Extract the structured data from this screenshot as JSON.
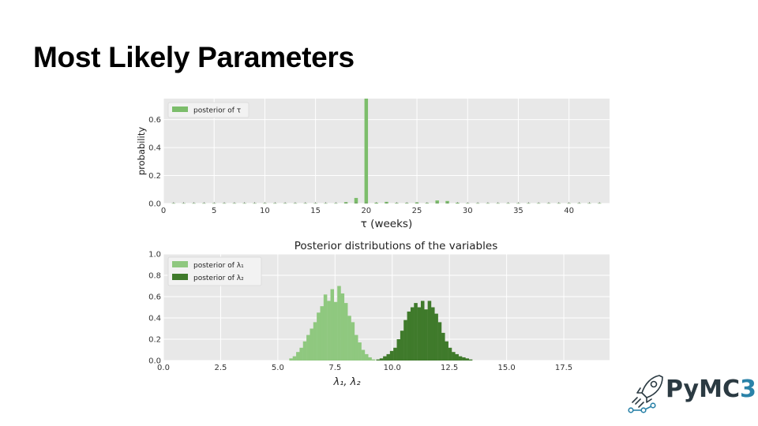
{
  "slide": {
    "title": "Most Likely Parameters"
  },
  "logo": {
    "text_main": "PyMC",
    "text_suffix": "3"
  },
  "colors": {
    "tau": "#7cbd6b",
    "lambda1": "#8fc87f",
    "lambda2": "#3f7a2b",
    "plot_bg": "#e8e8e8",
    "grid": "#ffffff"
  },
  "chart_data": [
    {
      "type": "bar",
      "title": "",
      "xlabel": "τ  (weeks)",
      "ylabel": "probability",
      "xlim": [
        0,
        44
      ],
      "ylim": [
        0,
        0.75
      ],
      "xticks": [
        0,
        5,
        10,
        15,
        20,
        25,
        30,
        35,
        40
      ],
      "yticks": [
        0.0,
        0.2,
        0.4,
        0.6
      ],
      "ytick_labels": [
        "0.0",
        "0.2",
        "0.4",
        "0.6"
      ],
      "grid": true,
      "legend_position": "top-left",
      "series": [
        {
          "name": "posterior of τ",
          "x": [
            1,
            2,
            3,
            4,
            5,
            6,
            7,
            8,
            9,
            10,
            11,
            12,
            13,
            14,
            15,
            16,
            17,
            18,
            19,
            20,
            21,
            22,
            23,
            24,
            25,
            26,
            27,
            28,
            29,
            30,
            31,
            32,
            33,
            34,
            35,
            36,
            37,
            38,
            39,
            40,
            41,
            42,
            43
          ],
          "values": [
            0.002,
            0.002,
            0.002,
            0.002,
            0.002,
            0.002,
            0.002,
            0.002,
            0.002,
            0.002,
            0.002,
            0.002,
            0.002,
            0.002,
            0.002,
            0.002,
            0.002,
            0.01,
            0.04,
            0.76,
            0.006,
            0.012,
            0.004,
            0.004,
            0.008,
            0.004,
            0.022,
            0.018,
            0.006,
            0.002,
            0.002,
            0.002,
            0.002,
            0.002,
            0.002,
            0.002,
            0.002,
            0.002,
            0.002,
            0.002,
            0.002,
            0.002,
            0.002
          ]
        }
      ]
    },
    {
      "type": "bar",
      "title": "Posterior distributions of the variables",
      "xlabel": "λ₁, λ₂",
      "ylabel": "",
      "xlim": [
        0,
        19.5
      ],
      "ylim": [
        0,
        1.0
      ],
      "xticks": [
        0,
        2.5,
        5.0,
        7.5,
        10.0,
        12.5,
        15.0,
        17.5
      ],
      "xtick_labels": [
        "0.0",
        "2.5",
        "5.0",
        "7.5",
        "10.0",
        "12.5",
        "15.0",
        "17.5"
      ],
      "yticks": [
        0.0,
        0.2,
        0.4,
        0.6,
        0.8,
        1.0
      ],
      "ytick_labels": [
        "0.0",
        "0.2",
        "0.4",
        "0.6",
        "0.8",
        "1.0"
      ],
      "grid": true,
      "legend_position": "top-left",
      "bin_width": 0.15,
      "series": [
        {
          "name": "posterior of λ₁",
          "bin_start": 5.5,
          "values": [
            0.02,
            0.04,
            0.08,
            0.12,
            0.18,
            0.24,
            0.3,
            0.36,
            0.45,
            0.51,
            0.62,
            0.56,
            0.67,
            0.55,
            0.7,
            0.63,
            0.54,
            0.42,
            0.36,
            0.24,
            0.17,
            0.1,
            0.06,
            0.03,
            0.01
          ]
        },
        {
          "name": "posterior of λ₂",
          "bin_start": 9.3,
          "values": [
            0.01,
            0.02,
            0.04,
            0.06,
            0.09,
            0.12,
            0.2,
            0.28,
            0.38,
            0.46,
            0.5,
            0.54,
            0.5,
            0.56,
            0.48,
            0.56,
            0.5,
            0.44,
            0.36,
            0.26,
            0.18,
            0.12,
            0.08,
            0.06,
            0.04,
            0.03,
            0.02,
            0.01
          ]
        }
      ]
    }
  ]
}
